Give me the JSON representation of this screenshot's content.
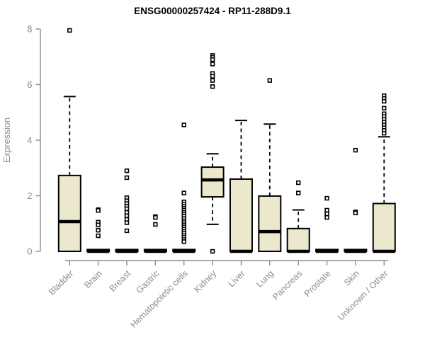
{
  "chart_data": {
    "type": "boxplot",
    "title": "ENSG00000257424 - RP11-288D9.1",
    "xlabel": "",
    "ylabel": "Expression",
    "ylim": [
      0,
      8
    ],
    "yticks": [
      0,
      2,
      4,
      6,
      8
    ],
    "grid": false,
    "legend": "none",
    "box_fill_color": "#ece8cd",
    "box_stroke_color": "#000000",
    "axis_color": "#8c8c8c",
    "categories": [
      "Bladder",
      "Brain",
      "Breast",
      "Gastric",
      "Hematopoietic cells",
      "Kidney",
      "Liver",
      "Lung",
      "Pancreas",
      "Prostate",
      "Skin",
      "Unknown / Other"
    ],
    "series": [
      {
        "category": "Bladder",
        "q1": 0,
        "median": 1.07,
        "q3": 2.73,
        "whisker_low": 0,
        "whisker_high": 5.57,
        "outliers": [
          7.95
        ]
      },
      {
        "category": "Brain",
        "q1": 0,
        "median": 0,
        "q3": 0,
        "whisker_low": 0,
        "whisker_high": 0,
        "outliers": [
          1.5,
          1.47,
          1.05,
          0.95,
          0.76,
          0.56
        ]
      },
      {
        "category": "Breast",
        "q1": 0,
        "median": 0,
        "q3": 0,
        "whisker_low": 0,
        "whisker_high": 0,
        "outliers": [
          2.9,
          2.65,
          1.93,
          1.82,
          1.72,
          1.62,
          1.53,
          1.4,
          1.28,
          1.15,
          1.03,
          0.74
        ]
      },
      {
        "category": "Gastric",
        "q1": 0,
        "median": 0,
        "q3": 0,
        "whisker_low": 0,
        "whisker_high": 0,
        "outliers": [
          1.25,
          1.22,
          0.97
        ]
      },
      {
        "category": "Hematopoietic cells",
        "q1": 0,
        "median": 0,
        "q3": 0,
        "whisker_low": 0,
        "whisker_high": 0,
        "outliers": [
          4.55,
          2.1,
          1.78,
          1.7,
          1.62,
          1.55,
          1.48,
          1.4,
          1.33,
          1.26,
          1.18,
          1.1,
          1.03,
          0.95,
          0.88,
          0.8,
          0.72,
          0.65,
          0.57,
          0.5,
          0.42,
          0.35
        ]
      },
      {
        "category": "Kidney",
        "q1": 1.96,
        "median": 2.57,
        "q3": 3.03,
        "whisker_low": 0.97,
        "whisker_high": 3.51,
        "outliers": [
          7.05,
          6.98,
          6.9,
          6.74,
          6.4,
          6.3,
          6.15,
          5.93,
          0
        ]
      },
      {
        "category": "Liver",
        "q1": 0,
        "median": 0,
        "q3": 2.6,
        "whisker_low": 0,
        "whisker_high": 4.71,
        "outliers": []
      },
      {
        "category": "Lung",
        "q1": 0,
        "median": 0.71,
        "q3": 1.99,
        "whisker_low": 0,
        "whisker_high": 4.58,
        "outliers": [
          6.15
        ]
      },
      {
        "category": "Pancreas",
        "q1": 0,
        "median": 0,
        "q3": 0.82,
        "whisker_low": 0,
        "whisker_high": 1.49,
        "outliers": [
          2.47,
          2.1
        ]
      },
      {
        "category": "Prostate",
        "q1": 0,
        "median": 0,
        "q3": 0,
        "whisker_low": 0,
        "whisker_high": 0,
        "outliers": [
          1.91,
          1.48,
          1.35,
          1.22
        ]
      },
      {
        "category": "Skin",
        "q1": 0,
        "median": 0,
        "q3": 0,
        "whisker_low": 0,
        "whisker_high": 0,
        "outliers": [
          3.64,
          1.42,
          1.38
        ]
      },
      {
        "category": "Unknown / Other",
        "q1": 0,
        "median": 0,
        "q3": 1.72,
        "whisker_low": 0,
        "whisker_high": 4.12,
        "outliers": [
          5.6,
          5.5,
          5.4,
          5.15,
          4.95,
          4.85,
          4.75,
          4.65,
          4.55,
          4.45,
          4.35,
          4.25
        ]
      }
    ]
  }
}
